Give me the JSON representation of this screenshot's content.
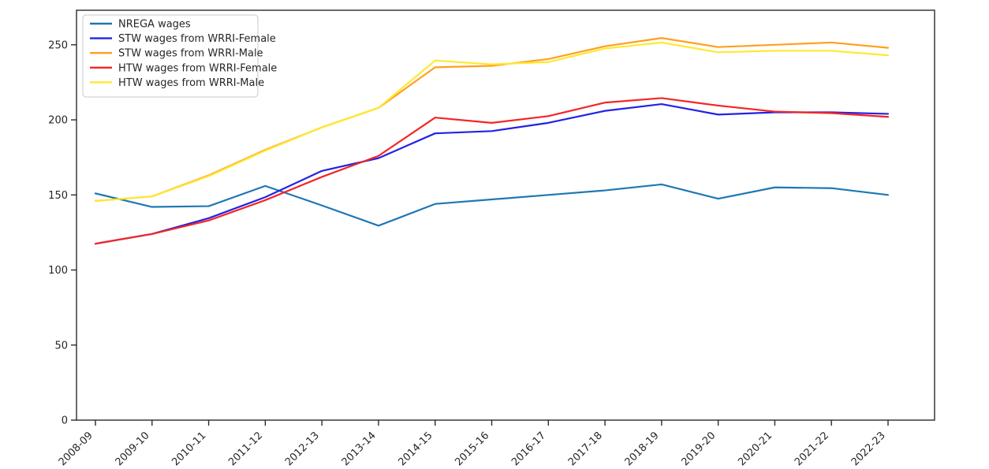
{
  "figure": {
    "background": "#ffffff",
    "frame_color": "#2b2b2b"
  },
  "chart_data": {
    "type": "line",
    "title": "",
    "xlabel": "",
    "ylabel": "",
    "grid": false,
    "legend_position": "upper-left",
    "ylim": [
      0,
      273
    ],
    "yticks": [
      0,
      50,
      100,
      150,
      200,
      250
    ],
    "categories": [
      "2008-09",
      "2009-10",
      "2010-11",
      "2011-12",
      "2012-13",
      "2013-14",
      "2014-15",
      "2015-16",
      "2016-17",
      "2017-18",
      "2018-19",
      "2019-20",
      "2020-21",
      "2021-22",
      "2022-23"
    ],
    "series": [
      {
        "name": "NREGA wages",
        "color": "#1f77b4",
        "values": [
          151,
          142,
          142.5,
          156,
          143,
          129.5,
          144,
          147,
          150,
          153,
          157,
          147.5,
          155,
          154.5,
          150
        ]
      },
      {
        "name": "STW wages from WRRI-Female",
        "color": "#2222e6",
        "values": [
          117.5,
          124,
          134.5,
          148.5,
          166,
          174.5,
          191,
          192.5,
          198,
          206,
          210.5,
          203.5,
          205,
          205,
          204
        ]
      },
      {
        "name": "STW wages from WRRI-Male",
        "color": "#ffa01e",
        "values": [
          146,
          149,
          163,
          180,
          195,
          208,
          235,
          236,
          240.5,
          249,
          254.5,
          248.5,
          250,
          251.5,
          248
        ]
      },
      {
        "name": "HTW wages from WRRI-Female",
        "color": "#f42525",
        "values": [
          117.5,
          124,
          133,
          146.5,
          162,
          176,
          201.5,
          198,
          202.5,
          211.5,
          214.5,
          209.5,
          205.5,
          204.5,
          202
        ]
      },
      {
        "name": "HTW wages from WRRI-Male",
        "color": "#ffe830",
        "values": [
          146,
          149,
          162.5,
          179.5,
          195,
          208,
          239.5,
          237,
          238.5,
          247.5,
          251.5,
          245,
          246,
          246,
          243
        ]
      }
    ]
  }
}
